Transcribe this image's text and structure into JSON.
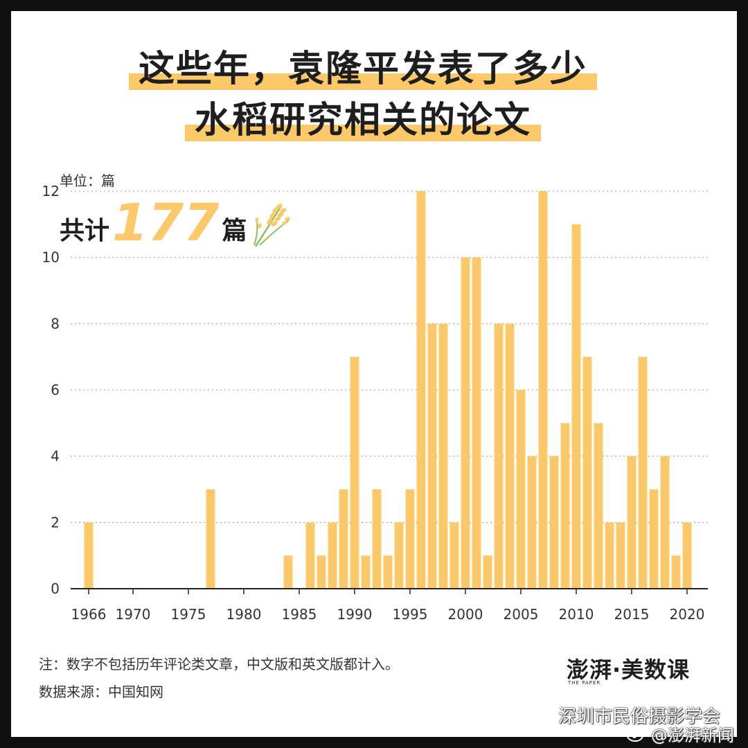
{
  "title_lines": [
    "这些年，袁隆平发表了多少",
    "水稻研究相关的论文"
  ],
  "unit_label": "单位：篇",
  "total": {
    "prefix": "共计",
    "value": "177",
    "suffix": "篇"
  },
  "notes": {
    "note": "注：数字不包括历年评论类文章，中文版和英文版都计入。",
    "source": "数据来源：中国知网"
  },
  "brand": {
    "name": "澎湃·美数课",
    "sub": "THE PAPER"
  },
  "watermarks": {
    "line1": "深圳市民俗摄影学会",
    "line2": "@澎湃新闻"
  },
  "icons": [
    "rice-icon",
    "wechat-icon",
    "weibo-icon"
  ],
  "colors": {
    "bar": "#fbc96a",
    "highlight": "#fbc96a",
    "text": "#1e1e1e"
  },
  "chart_data": {
    "type": "bar",
    "title": "",
    "xlabel": "",
    "ylabel": "",
    "ylim": [
      0,
      12
    ],
    "yticks": [
      0,
      2,
      4,
      6,
      8,
      10,
      12
    ],
    "xticks": [
      1966,
      1970,
      1975,
      1980,
      1985,
      1990,
      1995,
      2000,
      2005,
      2010,
      2015,
      2020
    ],
    "xlim": [
      1966,
      2020
    ],
    "grid": "horizontal-dotted",
    "series": [
      {
        "x": [
          1966,
          1977,
          1984,
          1986,
          1987,
          1988,
          1989,
          1990,
          1991,
          1992,
          1993,
          1994,
          1995,
          1996,
          1997,
          1998,
          1999,
          2000,
          2001,
          2002,
          2003,
          2004,
          2005,
          2006,
          2007,
          2008,
          2009,
          2010,
          2011,
          2012,
          2013,
          2014,
          2015,
          2016,
          2017,
          2018,
          2019,
          2020
        ],
        "values": [
          2,
          3,
          1,
          2,
          1,
          2,
          3,
          7,
          1,
          3,
          1,
          2,
          3,
          12,
          8,
          8,
          2,
          10,
          10,
          1,
          8,
          8,
          6,
          4,
          12,
          4,
          5,
          11,
          7,
          5,
          2,
          2,
          4,
          7,
          3,
          4,
          1,
          2
        ]
      }
    ]
  }
}
